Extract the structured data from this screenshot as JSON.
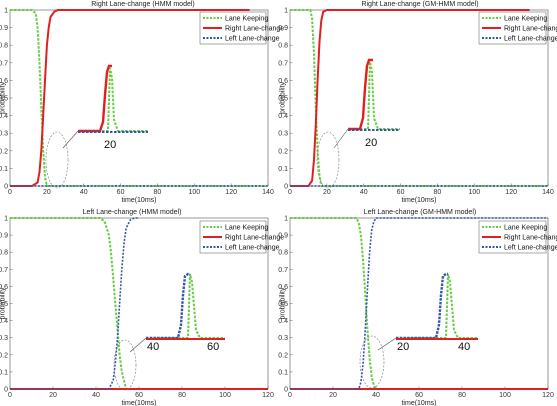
{
  "legend_labels": [
    "Lane Keeping",
    "Right Lane-change",
    "Left Lane-change"
  ],
  "series_colors": {
    "Lane Keeping": "#66cc44",
    "Right Lane-change": "#e02020",
    "Left Lane-change": "#3355aa"
  },
  "chart_data": [
    {
      "type": "line",
      "title": "Right Lane-change (HMM model)",
      "xlabel": "time(10ms)",
      "ylabel": "probability",
      "xlim": [
        0,
        140
      ],
      "ylim": [
        0,
        1
      ],
      "xticks": [
        0,
        20,
        40,
        60,
        80,
        100,
        120,
        140
      ],
      "yticks": [
        0,
        0.1,
        0.2,
        0.3,
        0.4,
        0.5,
        0.6,
        0.7,
        0.8,
        0.9,
        1
      ],
      "legend": "top-right",
      "series": [
        {
          "name": "Lane Keeping",
          "x": [
            0,
            12,
            14,
            15,
            16,
            17,
            18,
            19,
            20,
            140
          ],
          "y": [
            1,
            1,
            0.98,
            0.9,
            0.7,
            0.45,
            0.2,
            0.05,
            0,
            0
          ]
        },
        {
          "name": "Right Lane-change",
          "x": [
            0,
            12,
            15,
            16,
            17,
            18,
            19,
            20,
            21,
            22,
            24,
            26,
            130
          ],
          "y": [
            0,
            0,
            0.02,
            0.08,
            0.2,
            0.4,
            0.6,
            0.8,
            0.9,
            0.96,
            0.99,
            1,
            1
          ]
        },
        {
          "name": "Left Lane-change",
          "x": [
            0,
            140
          ],
          "y": [
            0,
            0
          ]
        }
      ],
      "inset_label": "20"
    },
    {
      "type": "line",
      "title": "Right Lane-change (GM-HMM model)",
      "xlabel": "time(10ms)",
      "ylabel": "probability",
      "xlim": [
        0,
        140
      ],
      "ylim": [
        0,
        1
      ],
      "xticks": [
        0,
        20,
        40,
        60,
        80,
        100,
        120,
        140
      ],
      "yticks": [
        0,
        0.1,
        0.2,
        0.3,
        0.4,
        0.5,
        0.6,
        0.7,
        0.8,
        0.9,
        1
      ],
      "legend": "top-right",
      "series": [
        {
          "name": "Lane Keeping",
          "x": [
            0,
            11,
            12,
            13,
            14,
            15,
            16,
            17,
            140
          ],
          "y": [
            1,
            1,
            0.95,
            0.75,
            0.45,
            0.2,
            0.06,
            0,
            0
          ]
        },
        {
          "name": "Right Lane-change",
          "x": [
            0,
            10,
            12,
            13,
            14,
            15,
            16,
            17,
            18,
            20,
            130
          ],
          "y": [
            0,
            0,
            0.03,
            0.15,
            0.35,
            0.6,
            0.82,
            0.94,
            0.99,
            1,
            1
          ]
        },
        {
          "name": "Left Lane-change",
          "x": [
            0,
            140
          ],
          "y": [
            0,
            0
          ]
        }
      ],
      "inset_label": "20"
    },
    {
      "type": "line",
      "title": "Left Lane-change (HMM model)",
      "xlabel": "time(10ms)",
      "ylabel": "probability",
      "xlim": [
        0,
        120
      ],
      "ylim": [
        0,
        1
      ],
      "xticks": [
        0,
        20,
        40,
        60,
        80,
        100,
        120
      ],
      "yticks": [
        0,
        0.1,
        0.2,
        0.3,
        0.4,
        0.5,
        0.6,
        0.7,
        0.8,
        0.9,
        1
      ],
      "legend": "top-right",
      "series": [
        {
          "name": "Lane Keeping",
          "x": [
            0,
            42,
            44,
            46,
            47,
            48,
            49,
            50,
            51,
            52,
            54,
            120
          ],
          "y": [
            1,
            1,
            0.98,
            0.9,
            0.8,
            0.65,
            0.5,
            0.35,
            0.2,
            0.1,
            0,
            0
          ]
        },
        {
          "name": "Right Lane-change",
          "x": [
            0,
            120
          ],
          "y": [
            0,
            0
          ]
        },
        {
          "name": "Left Lane-change",
          "x": [
            0,
            46,
            48,
            49,
            50,
            51,
            52,
            53,
            54,
            56,
            58,
            60
          ],
          "y": [
            0,
            0,
            0.05,
            0.15,
            0.3,
            0.5,
            0.7,
            0.85,
            0.94,
            0.99,
            1,
            1
          ]
        }
      ],
      "inset_labels": [
        "40",
        "60"
      ]
    },
    {
      "type": "line",
      "title": "Left Lane-change (GM-HMM model)",
      "xlabel": "time(10ms)",
      "ylabel": "probability",
      "xlim": [
        0,
        120
      ],
      "ylim": [
        0,
        1
      ],
      "xticks": [
        0,
        20,
        40,
        60,
        80,
        100,
        120
      ],
      "yticks": [
        0,
        0.1,
        0.2,
        0.3,
        0.4,
        0.5,
        0.6,
        0.7,
        0.8,
        0.9,
        1
      ],
      "legend": "top-right",
      "series": [
        {
          "name": "Lane Keeping",
          "x": [
            0,
            31,
            32,
            33,
            34,
            35,
            36,
            37,
            38,
            39,
            40,
            120
          ],
          "y": [
            1,
            1,
            0.97,
            0.9,
            0.75,
            0.55,
            0.35,
            0.18,
            0.07,
            0.02,
            0,
            0
          ]
        },
        {
          "name": "Right Lane-change",
          "x": [
            0,
            120
          ],
          "y": [
            0,
            0
          ]
        },
        {
          "name": "Left Lane-change",
          "x": [
            0,
            32,
            33,
            34,
            35,
            36,
            37,
            38,
            39,
            40,
            41,
            120
          ],
          "y": [
            0,
            0,
            0.04,
            0.15,
            0.35,
            0.58,
            0.8,
            0.93,
            0.98,
            1,
            1,
            1
          ]
        }
      ],
      "inset_labels": [
        "20",
        "40"
      ]
    }
  ]
}
